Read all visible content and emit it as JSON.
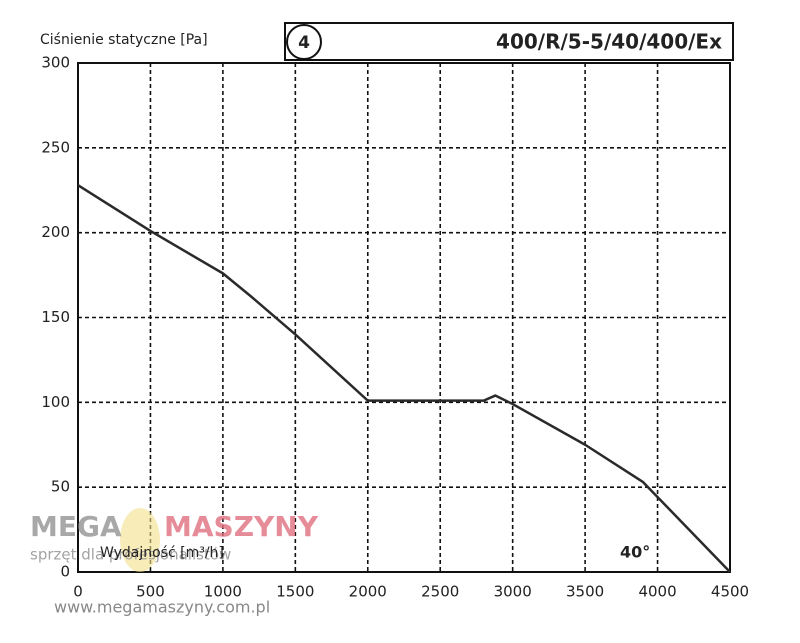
{
  "chart_data": {
    "type": "line",
    "y_label": "Ciśnienie statyczne [Pa]",
    "x_label": "Wydajność [m³/h]",
    "curve_number": "4",
    "model": "400/R/5-5/40/400/Ex",
    "annotation": "40°",
    "x": [
      0,
      500,
      1000,
      1200,
      1500,
      2000,
      2500,
      2800,
      2880,
      3000,
      3500,
      3900,
      4500
    ],
    "values": [
      228,
      201,
      176,
      162,
      140,
      101,
      101,
      101,
      104,
      99,
      75,
      53,
      0
    ],
    "color": "#2a2a2a",
    "xlim": [
      0,
      4500
    ],
    "xticks": [
      0,
      500,
      1000,
      1500,
      2000,
      2500,
      3000,
      3500,
      4000,
      4500
    ],
    "ylim": [
      0,
      300
    ],
    "yticks": [
      0,
      50,
      100,
      150,
      200,
      250,
      300
    ],
    "grid": true
  },
  "watermark": {
    "brand_left": "MEGA",
    "brand_right": "MASZYNY",
    "tagline": "sprzęt dla profesjonalistów",
    "url": "www.megamaszyny.com.pl"
  }
}
